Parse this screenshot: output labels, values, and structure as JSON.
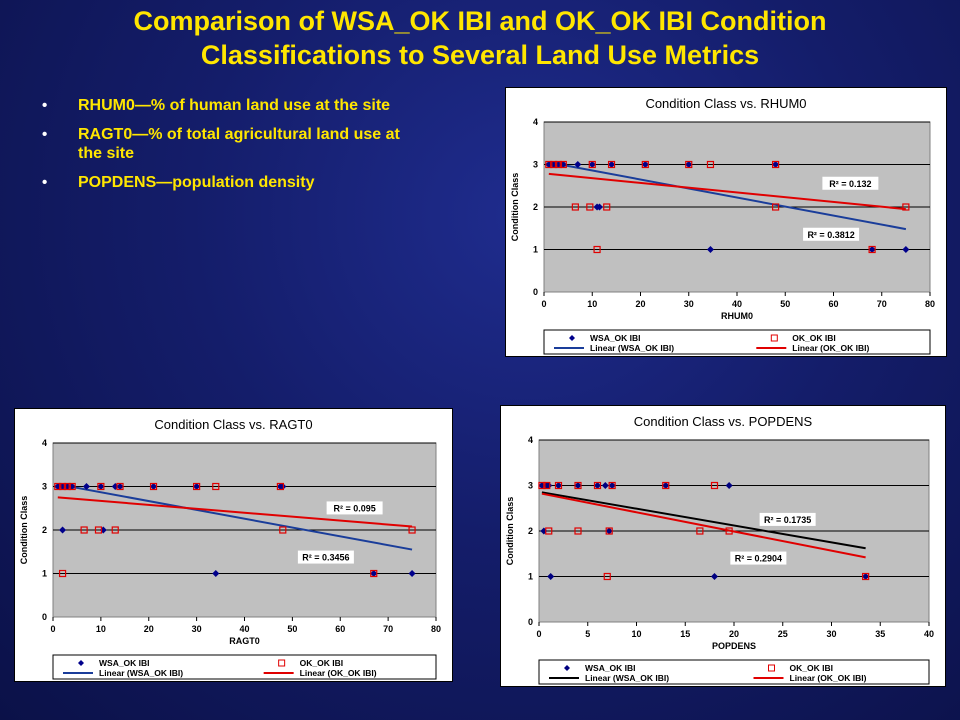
{
  "slide": {
    "title_line1": "Comparison of WSA_OK IBI and OK_OK IBI Condition",
    "title_line2": "Classifications to Several Land Use Metrics",
    "bullets": [
      "RHUM0—% of human land use at the site",
      "RAGT0—% of total agricultural land use at the site",
      "POPDENS—population density"
    ]
  },
  "colors": {
    "wsa": "#00008b",
    "ok": "#e00000",
    "plot_bg": "#c0c0c0",
    "title_text": "#ffe600"
  },
  "chart_data": [
    {
      "id": "rhum0",
      "type": "scatter",
      "title": "Condition Class vs. RHUM0",
      "xlabel": "RHUM0",
      "ylabel": "Condition Class",
      "xlim": [
        0,
        80
      ],
      "ylim": [
        0,
        4
      ],
      "xticks": [
        0,
        10,
        20,
        30,
        40,
        50,
        60,
        70,
        80
      ],
      "yticks": [
        0,
        1,
        2,
        3,
        4
      ],
      "grid": true,
      "legend_position": "bottom",
      "legend": [
        "WSA_OK IBI",
        "OK_OK IBI",
        "Linear (WSA_OK IBI)",
        "Linear (OK_OK IBI)"
      ],
      "series": [
        {
          "name": "WSA_OK IBI",
          "marker": "diamond",
          "color": "#00008b",
          "points": [
            [
              1,
              3
            ],
            [
              2,
              3
            ],
            [
              3,
              3
            ],
            [
              4,
              3
            ],
            [
              7,
              3
            ],
            [
              10,
              3
            ],
            [
              11,
              2
            ],
            [
              11.5,
              2
            ],
            [
              14,
              3
            ],
            [
              21,
              3
            ],
            [
              30,
              3
            ],
            [
              34.5,
              1
            ],
            [
              48,
              3
            ],
            [
              68,
              1
            ],
            [
              75,
              1
            ]
          ]
        },
        {
          "name": "OK_OK IBI",
          "marker": "square",
          "color": "#e00000",
          "points": [
            [
              1,
              3
            ],
            [
              2,
              3
            ],
            [
              3,
              3
            ],
            [
              4,
              3
            ],
            [
              6.5,
              2
            ],
            [
              9.5,
              2
            ],
            [
              10,
              3
            ],
            [
              11,
              1
            ],
            [
              13,
              2
            ],
            [
              14,
              3
            ],
            [
              21,
              3
            ],
            [
              30,
              3
            ],
            [
              34.5,
              3
            ],
            [
              48,
              3
            ],
            [
              48,
              2
            ],
            [
              68,
              1
            ],
            [
              75,
              2
            ]
          ]
        },
        {
          "name": "Linear (WSA_OK IBI)",
          "type": "trend",
          "color": "#1a3d9a",
          "points": [
            [
              1,
              3.05
            ],
            [
              75,
              1.48
            ]
          ]
        },
        {
          "name": "Linear (OK_OK IBI)",
          "type": "trend",
          "color": "#e00000",
          "points": [
            [
              1,
              2.78
            ],
            [
              75,
              1.95
            ]
          ]
        }
      ],
      "annotations": [
        {
          "text": "R² = 0.132",
          "x": 63.5,
          "y": 2.5
        },
        {
          "text": "R² = 0.3812",
          "x": 59.5,
          "y": 1.3
        }
      ]
    },
    {
      "id": "ragt0",
      "type": "scatter",
      "title": "Condition Class vs. RAGT0",
      "xlabel": "RAGT0",
      "ylabel": "Condition Class",
      "xlim": [
        0,
        80
      ],
      "ylim": [
        0,
        4
      ],
      "xticks": [
        0,
        10,
        20,
        30,
        40,
        50,
        60,
        70,
        80
      ],
      "yticks": [
        0,
        1,
        2,
        3,
        4
      ],
      "grid": true,
      "legend_position": "bottom",
      "legend": [
        "WSA_OK IBI",
        "OK_OK IBI",
        "Linear (WSA_OK IBI)",
        "Linear (OK_OK IBI)"
      ],
      "series": [
        {
          "name": "WSA_OK IBI",
          "marker": "diamond",
          "color": "#00008b",
          "points": [
            [
              1,
              3
            ],
            [
              2,
              3
            ],
            [
              2,
              2
            ],
            [
              3,
              3
            ],
            [
              4,
              3
            ],
            [
              7,
              3
            ],
            [
              10,
              3
            ],
            [
              10.5,
              2
            ],
            [
              13,
              3
            ],
            [
              14,
              3
            ],
            [
              21,
              3
            ],
            [
              30,
              3
            ],
            [
              34,
              1
            ],
            [
              47.5,
              3
            ],
            [
              48,
              3
            ],
            [
              67,
              1
            ],
            [
              75,
              1
            ]
          ]
        },
        {
          "name": "OK_OK IBI",
          "marker": "square",
          "color": "#e00000",
          "points": [
            [
              1,
              3
            ],
            [
              2,
              3
            ],
            [
              2,
              1
            ],
            [
              3,
              3
            ],
            [
              4,
              3
            ],
            [
              6.5,
              2
            ],
            [
              9.5,
              2
            ],
            [
              10,
              3
            ],
            [
              13,
              2
            ],
            [
              14,
              3
            ],
            [
              21,
              3
            ],
            [
              30,
              3
            ],
            [
              34,
              3
            ],
            [
              47.5,
              3
            ],
            [
              48,
              2
            ],
            [
              67,
              1
            ],
            [
              75,
              2
            ]
          ]
        },
        {
          "name": "Linear (WSA_OK IBI)",
          "type": "trend",
          "color": "#1a3d9a",
          "points": [
            [
              1,
              3.05
            ],
            [
              75,
              1.55
            ]
          ]
        },
        {
          "name": "Linear (OK_OK IBI)",
          "type": "trend",
          "color": "#e00000",
          "points": [
            [
              1,
              2.75
            ],
            [
              75,
              2.08
            ]
          ]
        }
      ],
      "annotations": [
        {
          "text": "R² = 0.095",
          "x": 63,
          "y": 2.45
        },
        {
          "text": "R² = 0.3456",
          "x": 57,
          "y": 1.32
        }
      ]
    },
    {
      "id": "popdens",
      "type": "scatter",
      "title": "Condition Class vs. POPDENS",
      "xlabel": "POPDENS",
      "ylabel": "Condition Class",
      "xlim": [
        0,
        40
      ],
      "ylim": [
        0,
        4
      ],
      "xticks": [
        0,
        5,
        10,
        15,
        20,
        25,
        30,
        35,
        40
      ],
      "yticks": [
        0,
        1,
        2,
        3,
        4
      ],
      "grid": true,
      "legend_position": "bottom",
      "legend": [
        "WSA_OK IBI",
        "OK_OK IBI",
        "Linear (WSA_OK IBI)",
        "Linear (OK_OK IBI)"
      ],
      "series": [
        {
          "name": "WSA_OK IBI",
          "marker": "diamond",
          "color": "#000080",
          "points": [
            [
              0.3,
              3
            ],
            [
              0.5,
              2
            ],
            [
              0.8,
              3
            ],
            [
              1,
              3
            ],
            [
              1.2,
              1
            ],
            [
              2,
              3
            ],
            [
              4,
              3
            ],
            [
              6,
              3
            ],
            [
              6.8,
              3
            ],
            [
              7.2,
              2
            ],
            [
              7.5,
              3
            ],
            [
              13,
              3
            ],
            [
              18,
              1
            ],
            [
              19.5,
              3
            ],
            [
              33.5,
              1
            ]
          ]
        },
        {
          "name": "OK_OK IBI",
          "marker": "square",
          "color": "#e00000",
          "points": [
            [
              0.3,
              3
            ],
            [
              0.8,
              3
            ],
            [
              1,
              2
            ],
            [
              2,
              3
            ],
            [
              4,
              2
            ],
            [
              4,
              3
            ],
            [
              6,
              3
            ],
            [
              7,
              1
            ],
            [
              7.2,
              2
            ],
            [
              7.5,
              3
            ],
            [
              13,
              3
            ],
            [
              16.5,
              2
            ],
            [
              18,
              3
            ],
            [
              19.5,
              2
            ],
            [
              33.5,
              1
            ]
          ]
        },
        {
          "name": "Linear (WSA_OK IBI)",
          "type": "trend",
          "color": "#000000",
          "points": [
            [
              0.3,
              2.85
            ],
            [
              33.5,
              1.62
            ]
          ]
        },
        {
          "name": "Linear (OK_OK IBI)",
          "type": "trend",
          "color": "#e00000",
          "points": [
            [
              0.3,
              2.82
            ],
            [
              33.5,
              1.42
            ]
          ]
        }
      ],
      "annotations": [
        {
          "text": "R² = 0.1735",
          "x": 25.5,
          "y": 2.2
        },
        {
          "text": "R² = 0.2904",
          "x": 22.5,
          "y": 1.35
        }
      ]
    }
  ]
}
